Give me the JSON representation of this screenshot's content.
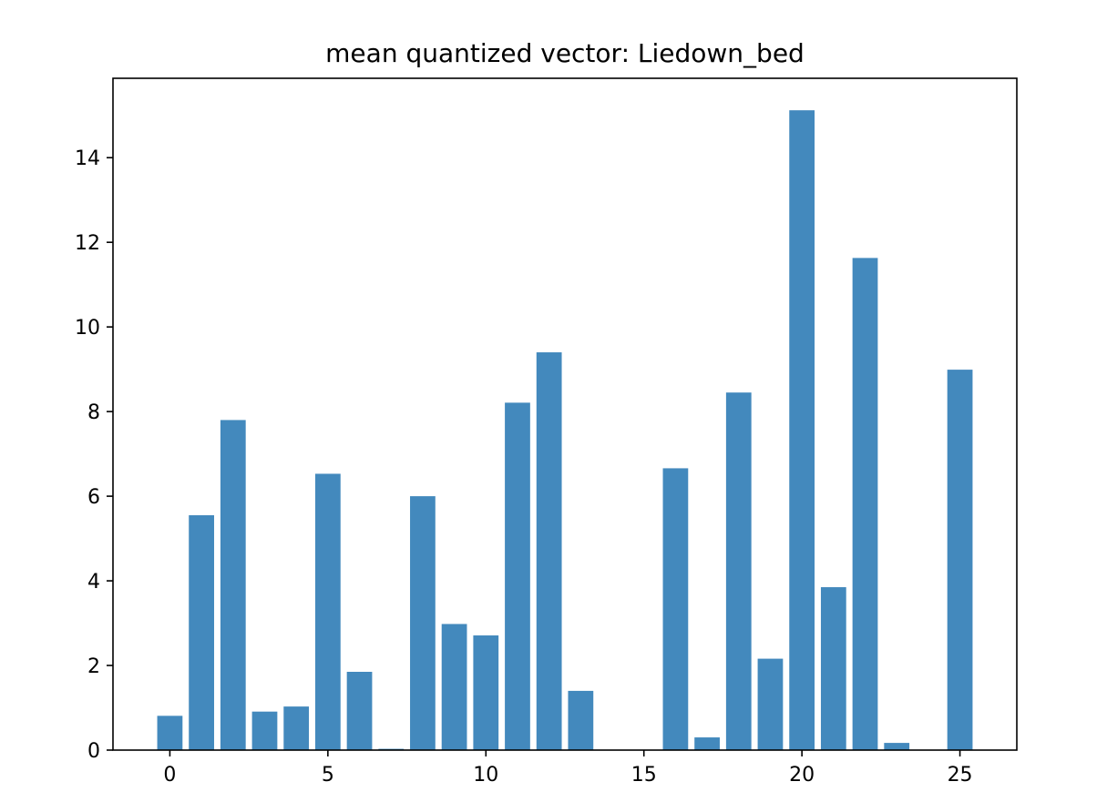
{
  "chart_data": {
    "type": "bar",
    "title": "mean quantized vector: Liedown_bed",
    "xlabel": "",
    "ylabel": "",
    "categories": [
      0,
      1,
      2,
      3,
      4,
      5,
      6,
      7,
      8,
      9,
      10,
      11,
      12,
      13,
      14,
      15,
      16,
      17,
      18,
      19,
      20,
      21,
      22,
      23,
      24,
      25
    ],
    "values": [
      0.81,
      5.55,
      7.8,
      0.91,
      1.03,
      6.53,
      1.85,
      0.03,
      6.0,
      2.98,
      2.71,
      8.21,
      9.4,
      1.4,
      0.0,
      0.0,
      6.66,
      0.3,
      8.45,
      2.16,
      15.12,
      3.85,
      11.63,
      0.17,
      0.0,
      8.99
    ],
    "xlim": [
      -1.8,
      26.8
    ],
    "ylim": [
      0,
      15.876
    ],
    "xticks": [
      0,
      5,
      10,
      15,
      20,
      25
    ],
    "yticks": [
      0,
      2,
      4,
      6,
      8,
      10,
      12,
      14
    ],
    "bar_width": 0.8,
    "bar_color": "#4389bd",
    "grid": false,
    "legend": "none"
  }
}
